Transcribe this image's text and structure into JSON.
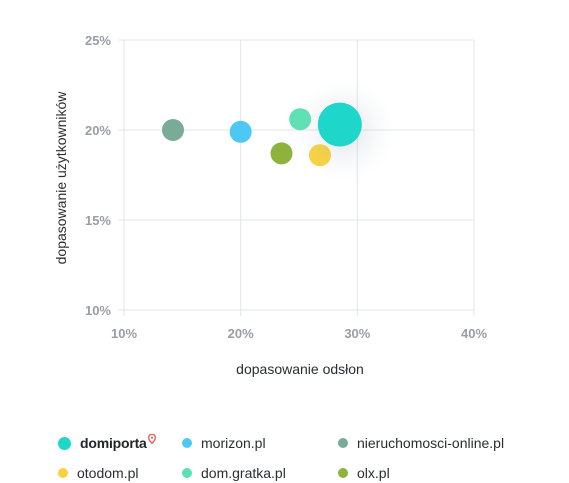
{
  "chart_data": {
    "type": "scatter",
    "title": "",
    "xlabel": "dopasowanie odsłon",
    "ylabel": "dopasowanie użytkowników",
    "xlim": [
      10,
      40
    ],
    "ylim": [
      10,
      25
    ],
    "xticks": [
      "10%",
      "20%",
      "30%",
      "40%"
    ],
    "yticks": [
      "25%",
      "20%",
      "15%",
      "10%"
    ],
    "grid": true,
    "legend_position": "bottom",
    "series": [
      {
        "name": "domiporta",
        "x": 28.5,
        "y": 20.3,
        "size": "large",
        "color": "#1fd6cb"
      },
      {
        "name": "morizon.pl",
        "x": 20.0,
        "y": 19.9,
        "size": "medium",
        "color": "#4cc8f2"
      },
      {
        "name": "nieruchomosci-online.pl",
        "x": 14.2,
        "y": 20.0,
        "size": "medium",
        "color": "#7aab97"
      },
      {
        "name": "otodom.pl",
        "x": 26.8,
        "y": 18.6,
        "size": "medium",
        "color": "#f8d23c"
      },
      {
        "name": "dom.gratka.pl",
        "x": 25.1,
        "y": 20.6,
        "size": "medium",
        "color": "#5ee0b5"
      },
      {
        "name": "olx.pl",
        "x": 23.5,
        "y": 18.7,
        "size": "medium",
        "color": "#8cb33c"
      }
    ]
  },
  "legend": {
    "items": [
      {
        "label": "domiporta",
        "color": "#1fd6cb",
        "logo": true,
        "icon": "map-pin-icon",
        "pin_color": "#f0605e"
      },
      {
        "label": "morizon.pl",
        "color": "#4cc8f2"
      },
      {
        "label": "nieruchomosci-online.pl",
        "color": "#7aab97"
      },
      {
        "label": "otodom.pl",
        "color": "#f8d23c"
      },
      {
        "label": "dom.gratka.pl",
        "color": "#5ee0b5"
      },
      {
        "label": "olx.pl",
        "color": "#8cb33c"
      }
    ]
  }
}
